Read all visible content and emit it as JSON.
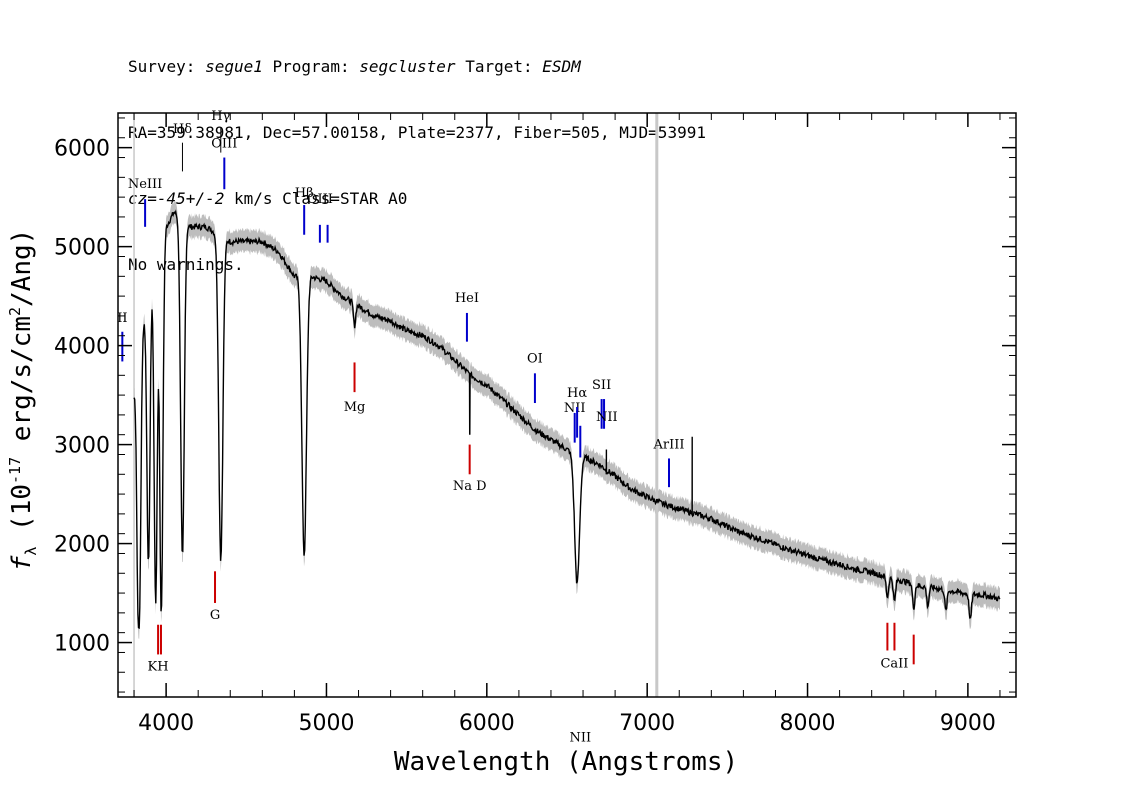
{
  "header": {
    "survey_label": "Survey:",
    "survey": "segue1",
    "program_label": "Program:",
    "program": "segcluster",
    "target_label": "Target:",
    "target": "ESDM",
    "line2": "RA=359.38981, Dec=57.00158, Plate=2377, Fiber=505, MJD=53991",
    "cz_label": "cz=",
    "cz_value": "-45+/-2",
    "cz_rest": " km/s Class=STAR A0",
    "line4": "No warnings."
  },
  "chart_data": {
    "type": "line",
    "title": "",
    "xlabel": "Wavelength (Angstroms)",
    "ylabel": "f_λ (10^-17 erg/s/cm^2/Ang)",
    "xlim": [
      3700,
      9300
    ],
    "ylim": [
      450,
      6350
    ],
    "xticks": [
      4000,
      5000,
      6000,
      7000,
      8000,
      9000
    ],
    "xtick_labels": [
      "4000",
      "5000",
      "6000",
      "7000",
      "8000",
      "9000"
    ],
    "yticks": [
      1000,
      2000,
      3000,
      4000,
      5000,
      6000
    ],
    "ytick_labels": [
      "1000",
      "2000",
      "3000",
      "4000",
      "5000",
      "6000"
    ],
    "grey_vertical_line": 7060,
    "continuum": [
      [
        3800,
        3500
      ],
      [
        3850,
        4100
      ],
      [
        3900,
        4800
      ],
      [
        3950,
        5000
      ],
      [
        4000,
        5200
      ],
      [
        4050,
        5350
      ],
      [
        4150,
        5200
      ],
      [
        4250,
        5200
      ],
      [
        4400,
        5050
      ],
      [
        4500,
        5050
      ],
      [
        4600,
        5050
      ],
      [
        4700,
        4950
      ],
      [
        4800,
        4700
      ],
      [
        4900,
        4700
      ],
      [
        5000,
        4650
      ],
      [
        5100,
        4500
      ],
      [
        5200,
        4400
      ],
      [
        5300,
        4300
      ],
      [
        5400,
        4250
      ],
      [
        5500,
        4150
      ],
      [
        5600,
        4100
      ],
      [
        5700,
        4000
      ],
      [
        5800,
        3850
      ],
      [
        5900,
        3700
      ],
      [
        6000,
        3600
      ],
      [
        6100,
        3450
      ],
      [
        6200,
        3300
      ],
      [
        6300,
        3150
      ],
      [
        6400,
        3050
      ],
      [
        6500,
        2950
      ],
      [
        6600,
        2880
      ],
      [
        6700,
        2800
      ],
      [
        6800,
        2680
      ],
      [
        6900,
        2550
      ],
      [
        7000,
        2470
      ],
      [
        7100,
        2400
      ],
      [
        7200,
        2350
      ],
      [
        7300,
        2300
      ],
      [
        7400,
        2250
      ],
      [
        7500,
        2170
      ],
      [
        7600,
        2100
      ],
      [
        7700,
        2050
      ],
      [
        7800,
        1990
      ],
      [
        7900,
        1930
      ],
      [
        8000,
        1880
      ],
      [
        8100,
        1830
      ],
      [
        8200,
        1790
      ],
      [
        8300,
        1740
      ],
      [
        8400,
        1710
      ],
      [
        8500,
        1660
      ],
      [
        8600,
        1620
      ],
      [
        8700,
        1570
      ],
      [
        8800,
        1550
      ],
      [
        8900,
        1520
      ],
      [
        9000,
        1490
      ],
      [
        9100,
        1480
      ],
      [
        9200,
        1440
      ]
    ],
    "absorption_lines": [
      {
        "center": 3825,
        "depth": 0.55,
        "width": 12
      },
      {
        "center": 3835,
        "depth": 0.55,
        "width": 12
      },
      {
        "center": 3890,
        "depth": 0.62,
        "width": 14
      },
      {
        "center": 3935,
        "depth": 0.72,
        "width": 14
      },
      {
        "center": 3970,
        "depth": 0.75,
        "width": 14
      },
      {
        "center": 4102,
        "depth": 0.65,
        "width": 16
      },
      {
        "center": 4341,
        "depth": 0.64,
        "width": 18
      },
      {
        "center": 4861,
        "depth": 0.6,
        "width": 20
      },
      {
        "center": 6563,
        "depth": 0.45,
        "width": 22
      },
      {
        "center": 5175,
        "depth": 0.05,
        "width": 10
      },
      {
        "center": 8498,
        "depth": 0.12,
        "width": 10
      },
      {
        "center": 8542,
        "depth": 0.14,
        "width": 10
      },
      {
        "center": 8662,
        "depth": 0.15,
        "width": 10
      },
      {
        "center": 8750,
        "depth": 0.12,
        "width": 10
      },
      {
        "center": 8863,
        "depth": 0.14,
        "width": 10
      },
      {
        "center": 9015,
        "depth": 0.18,
        "width": 10
      }
    ],
    "emission_spikes": [
      {
        "x": 5893,
        "peak": 3700,
        "base": 3100
      },
      {
        "x": 6745,
        "peak": 2950,
        "base": 2700
      },
      {
        "x": 7280,
        "peak": 3080,
        "base": 2300
      }
    ],
    "line_markers": [
      {
        "label": "NeIII",
        "x": 3869,
        "y_top": 5480,
        "y_bottom": 5200,
        "color": "#0000cc",
        "label_y": 5590
      },
      {
        "label": "Hδ",
        "x": 4102,
        "y_top": 6050,
        "y_bottom": 5760,
        "color": "#000000",
        "label_y": 6150
      },
      {
        "label": "Hγ",
        "x": 4341,
        "y_top": 6200,
        "y_bottom": 5950,
        "color": "#000000",
        "label_y": 6280
      },
      {
        "label": "OIII",
        "x": 4363,
        "y_top": 5900,
        "y_bottom": 5580,
        "color": "#0000cc",
        "label_y": 6000
      },
      {
        "label": "Hβ",
        "x": 4861,
        "y_top": 5420,
        "y_bottom": 5120,
        "color": "#0000cc",
        "label_y": 5500
      },
      {
        "label": "OIII",
        "x": 4959,
        "y_top": 5220,
        "y_bottom": 5040,
        "color": "#0000cc",
        "label_y": 5440
      },
      {
        "label": "",
        "x": 5007,
        "y_top": 5220,
        "y_bottom": 5040,
        "color": "#0000cc",
        "label_y": 0
      },
      {
        "label": "HeI",
        "x": 5876,
        "y_top": 4330,
        "y_bottom": 4040,
        "color": "#0000cc",
        "label_y": 4440
      },
      {
        "label": "OI",
        "x": 6300,
        "y_top": 3720,
        "y_bottom": 3420,
        "color": "#0000cc",
        "label_y": 3830
      },
      {
        "label": "NII",
        "x": 6548,
        "y_top": 3320,
        "y_bottom": 3020,
        "color": "#0000cc",
        "label_y": 3330
      },
      {
        "label": "Hα",
        "x": 6563,
        "y_top": 3380,
        "y_bottom": 3070,
        "color": "#0000cc",
        "label_y": 3480
      },
      {
        "label": "NII",
        "x": 6583,
        "y_top": 3190,
        "y_bottom": 2870,
        "color": "#0000cc",
        "label_y": 0
      },
      {
        "label": "SII",
        "x": 6716,
        "y_top": 3460,
        "y_bottom": 3160,
        "color": "#0000cc",
        "label_y": 3560
      },
      {
        "label": "",
        "x": 6731,
        "y_top": 3460,
        "y_bottom": 3160,
        "color": "#0000cc",
        "label_y": 0
      },
      {
        "label": "NII",
        "x": 6748,
        "y_top": 0,
        "y_bottom": 0,
        "color": "#000000",
        "label_y": 3240
      },
      {
        "label": "ArIII",
        "x": 7136,
        "y_top": 2860,
        "y_bottom": 2570,
        "color": "#0000cc",
        "label_y": 2960
      },
      {
        "label": "II",
        "x": 3727,
        "y_top": 4140,
        "y_bottom": 3840,
        "color": "#0000cc",
        "label_y": 4240
      },
      {
        "label": "Mg",
        "x": 5175,
        "y_top": 3830,
        "y_bottom": 3530,
        "color": "#cc0000",
        "label_y": 3340
      },
      {
        "label": "Na D",
        "x": 5893,
        "y_top": 3000,
        "y_bottom": 2700,
        "color": "#cc0000",
        "label_y": 2540
      },
      {
        "label": "G",
        "x": 4305,
        "y_top": 1720,
        "y_bottom": 1400,
        "color": "#cc0000",
        "label_y": 1240
      },
      {
        "label": "KH",
        "x": 3950,
        "y_top": 1180,
        "y_bottom": 880,
        "color": "#cc0000",
        "label_y": 720
      },
      {
        "label": "",
        "x": 3968,
        "y_top": 1180,
        "y_bottom": 880,
        "color": "#cc0000",
        "label_y": 0
      },
      {
        "label": "CaII",
        "x": 8542,
        "y_top": 1200,
        "y_bottom": 920,
        "color": "#cc0000",
        "label_y": 750
      },
      {
        "label": "",
        "x": 8498,
        "y_top": 1200,
        "y_bottom": 920,
        "color": "#cc0000",
        "label_y": 0
      },
      {
        "label": "",
        "x": 8662,
        "y_top": 1080,
        "y_bottom": 780,
        "color": "#cc0000",
        "label_y": 0
      }
    ],
    "colors": {
      "spectrum": "#000000",
      "error_band": "#bdbdbd",
      "grey_line": "#c8c8c8",
      "emission_marker": "#0000cc",
      "absorption_marker": "#cc0000"
    }
  }
}
